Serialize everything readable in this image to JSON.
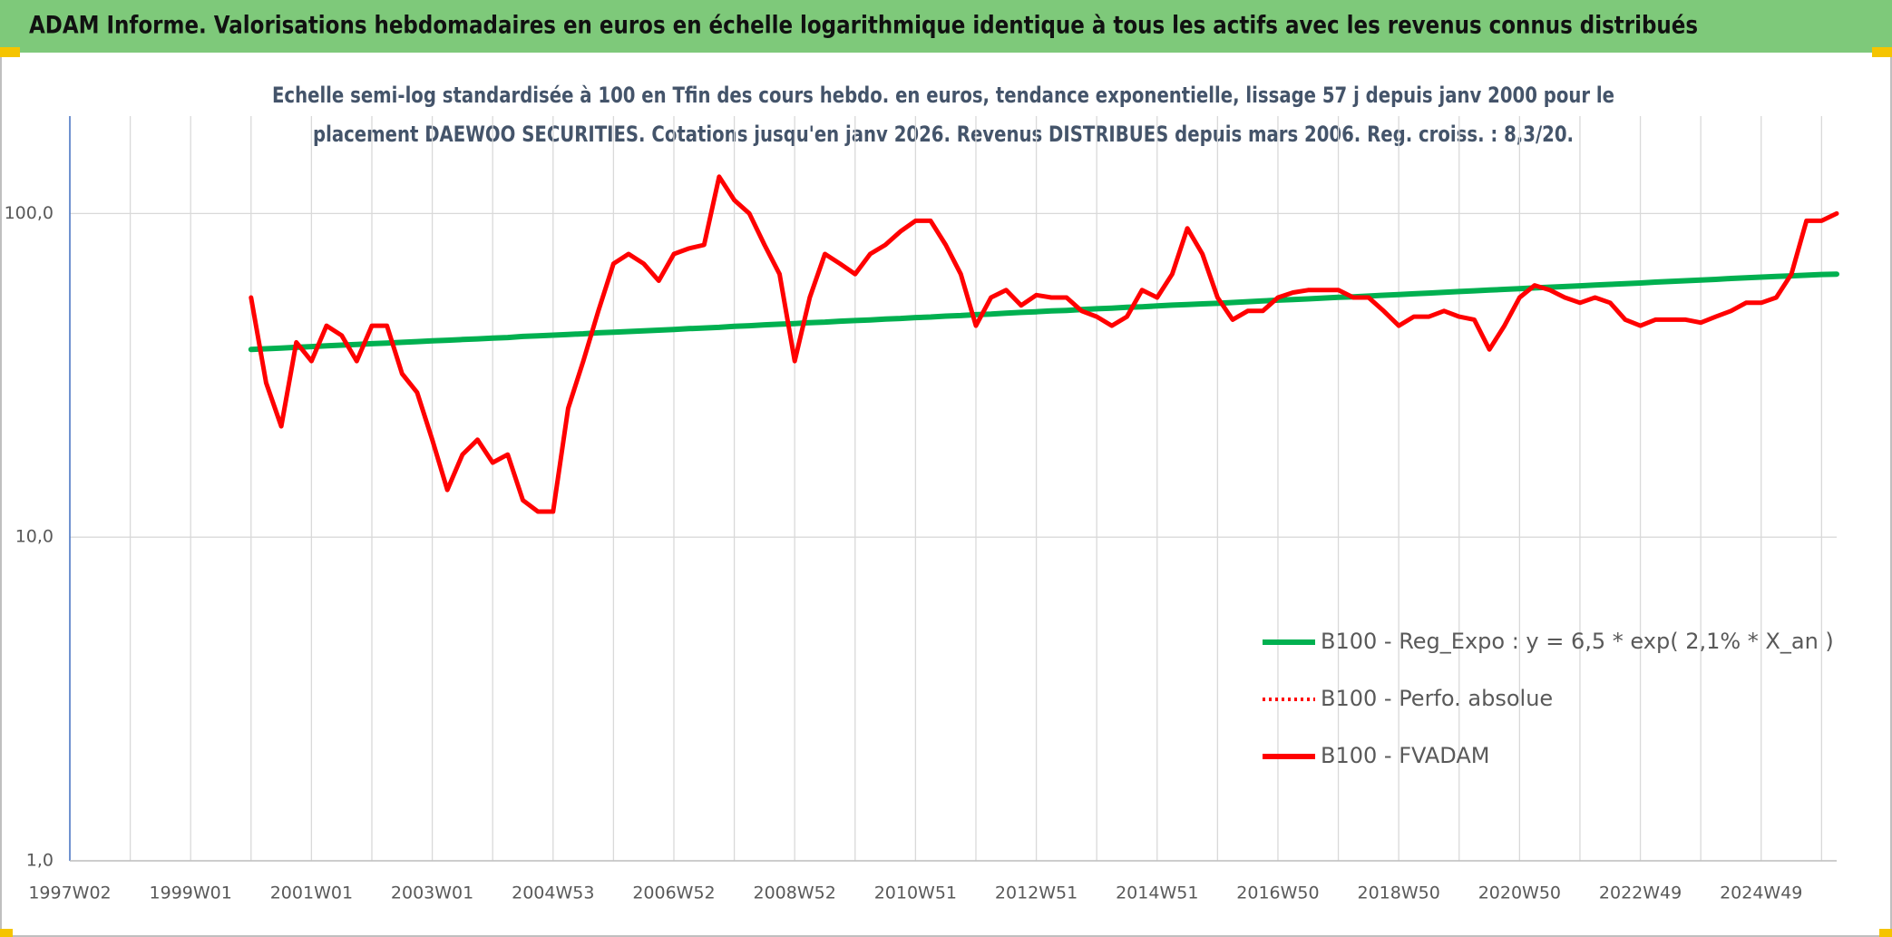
{
  "chart_data": {
    "type": "line",
    "title": "ADAM Informe. Valorisations hebdomadaires en euros en échelle logarithmique identique à tous les actifs avec les revenus connus distribués",
    "subtitle": [
      "Echelle semi-log standardisée à 100 en Tfin des cours hebdo. en euros, tendance exponentielle, lissage 57 j depuis janv 2000 pour le",
      "placement DAEWOO SECURITIES. Cotations jusqu'en janv 2026. Revenus DISTRIBUES depuis mars 2006. Reg. croiss. : 8,3/20."
    ],
    "log_scale": true,
    "grid": true,
    "legend": "right",
    "ylim": [
      1,
      200
    ],
    "yticks": [
      {
        "value": 1,
        "label": "1,0"
      },
      {
        "value": 10,
        "label": "10,0"
      },
      {
        "value": 100,
        "label": "100,0"
      }
    ],
    "categories": [
      "1997W02",
      null,
      null,
      null,
      null,
      null,
      null,
      null,
      "1999W01",
      null,
      null,
      null,
      null,
      null,
      null,
      null,
      "2001W01",
      null,
      null,
      null,
      null,
      null,
      null,
      null,
      "2003W01",
      null,
      null,
      null,
      null,
      null,
      null,
      null,
      "2004W53",
      null,
      null,
      null,
      null,
      null,
      null,
      null,
      "2006W52",
      null,
      null,
      null,
      null,
      null,
      null,
      null,
      "2008W52",
      null,
      null,
      null,
      null,
      null,
      null,
      null,
      "2010W51",
      null,
      null,
      null,
      null,
      null,
      null,
      null,
      "2012W51",
      null,
      null,
      null,
      null,
      null,
      null,
      null,
      "2014W51",
      null,
      null,
      null,
      null,
      null,
      null,
      null,
      "2016W50",
      null,
      null,
      null,
      null,
      null,
      null,
      null,
      "2018W50",
      null,
      null,
      null,
      null,
      null,
      null,
      null,
      "2020W50",
      null,
      null,
      null,
      null,
      null,
      null,
      null,
      "2022W49",
      null,
      null,
      null,
      null,
      null,
      null,
      null,
      "2024W49",
      null,
      null,
      null,
      null,
      null
    ],
    "series": [
      {
        "name": "B100 - Reg_Expo : y = 6,5 * exp( 2,1% *  X_an )",
        "color": "#00b050",
        "dash": "solid",
        "values": [
          null,
          null,
          null,
          null,
          null,
          null,
          null,
          null,
          null,
          null,
          null,
          null,
          38.0,
          38.2,
          38.4,
          38.6,
          38.8,
          39.0,
          39.2,
          39.4,
          39.6,
          39.8,
          40.0,
          40.2,
          40.4,
          40.6,
          40.8,
          41.0,
          41.2,
          41.4,
          41.7,
          41.9,
          42.1,
          42.3,
          42.5,
          42.8,
          43.0,
          43.2,
          43.4,
          43.6,
          43.8,
          44.1,
          44.3,
          44.5,
          44.8,
          45.0,
          45.3,
          45.5,
          45.7,
          46.0,
          46.2,
          46.5,
          46.7,
          46.9,
          47.2,
          47.4,
          47.7,
          47.9,
          48.2,
          48.4,
          48.7,
          48.9,
          49.2,
          49.5,
          49.7,
          50.0,
          50.2,
          50.5,
          50.8,
          51.0,
          51.3,
          51.5,
          51.8,
          52.1,
          52.3,
          52.6,
          52.8,
          53.1,
          53.4,
          53.7,
          54.0,
          54.2,
          54.5,
          54.8,
          55.1,
          55.3,
          55.6,
          55.9,
          56.2,
          56.5,
          56.8,
          57.1,
          57.4,
          57.7,
          58.0,
          58.3,
          58.6,
          58.9,
          59.2,
          59.5,
          59.8,
          60.1,
          60.4,
          60.7,
          61.0,
          61.4,
          61.7,
          62.0,
          62.3,
          62.6,
          63.0,
          63.3,
          63.6,
          63.9,
          64.2,
          64.5,
          64.8,
          65.0
        ]
      },
      {
        "name": "B100 - Perfo. absolue",
        "color": "#ff0000",
        "dash": "dotted",
        "values": [
          null,
          null,
          null,
          null,
          null,
          null,
          null,
          null,
          null,
          null,
          null,
          null,
          null,
          null,
          null,
          null,
          null,
          null,
          null,
          null,
          null,
          null,
          null,
          null,
          null,
          null,
          null,
          null,
          null,
          null,
          null,
          null,
          null,
          null,
          null,
          null,
          null,
          null,
          null,
          null,
          null,
          null,
          null,
          null,
          null,
          null,
          null,
          null,
          null,
          null,
          null,
          null,
          null,
          null,
          null,
          null,
          null,
          null,
          null,
          null,
          null,
          null,
          null,
          null,
          null,
          null,
          null,
          null,
          null,
          null,
          null,
          null,
          null,
          null,
          null,
          null,
          null,
          null,
          null,
          null,
          null,
          null,
          null,
          null,
          null,
          null,
          null,
          null,
          null,
          null,
          null,
          null,
          null,
          null,
          null,
          null,
          null,
          null,
          null,
          null,
          null,
          null,
          null,
          null,
          null,
          null,
          null,
          null,
          null,
          null,
          null,
          null,
          null,
          null,
          null,
          null,
          null,
          null
        ]
      },
      {
        "name": "B100 - FVADAM",
        "color": "#ff0000",
        "dash": "solid",
        "values": [
          null,
          null,
          null,
          null,
          null,
          null,
          null,
          null,
          null,
          null,
          null,
          null,
          55,
          30,
          22,
          40,
          35,
          45,
          42,
          35,
          45,
          45,
          32,
          28,
          20,
          14,
          18,
          20,
          17,
          18,
          13,
          12,
          12,
          25,
          35,
          50,
          70,
          75,
          70,
          62,
          75,
          78,
          80,
          130,
          110,
          100,
          80,
          65,
          35,
          55,
          75,
          70,
          65,
          75,
          80,
          88,
          95,
          95,
          80,
          65,
          45,
          55,
          58,
          52,
          56,
          55,
          55,
          50,
          48,
          45,
          48,
          58,
          55,
          65,
          90,
          75,
          55,
          47,
          50,
          50,
          55,
          57,
          58,
          58,
          58,
          55,
          55,
          50,
          45,
          48,
          48,
          50,
          48,
          47,
          38,
          45,
          55,
          60,
          58,
          55,
          53,
          55,
          53,
          47,
          45,
          47,
          47,
          47,
          46,
          48,
          50,
          53,
          53,
          55,
          65,
          95,
          95,
          100
        ]
      }
    ]
  }
}
